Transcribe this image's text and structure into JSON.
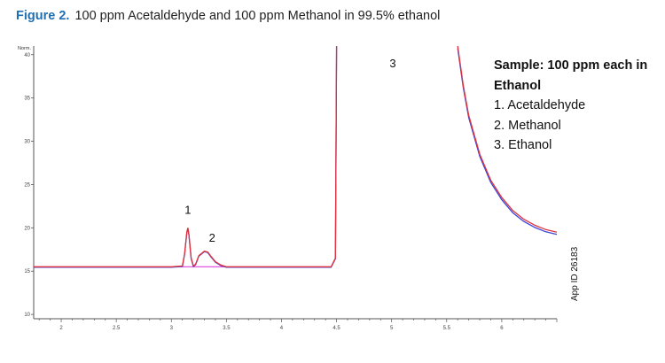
{
  "caption": {
    "figure_label": "Figure 2.",
    "text": "100 ppm Acetaldehyde and 100 ppm Methanol in 99.5% ethanol"
  },
  "legend": {
    "title_line1": "Sample: 100 ppm each  in",
    "title_line2": "Ethanol",
    "items": [
      "1. Acetaldehyde",
      "2. Methanol",
      "3. Ethanol"
    ]
  },
  "app_id": "App ID 26183",
  "colors": {
    "trace_red": "#e0323c",
    "trace_blue": "#3a44d8",
    "baseline_magenta": "#e040e0",
    "axis": "#555555"
  },
  "chart_data": {
    "type": "line",
    "title": "",
    "xlabel": "",
    "ylabel": "Norm.",
    "xlim": [
      1.75,
      6.5
    ],
    "ylim": [
      9.5,
      41
    ],
    "x_ticks": [
      2,
      2.5,
      3,
      3.5,
      4,
      4.5,
      5,
      5.5,
      6
    ],
    "x_tick_labels": [
      "2",
      "2.5",
      "3",
      "3.5",
      "4",
      "4.5",
      "5",
      "5.5",
      "6"
    ],
    "y_ticks": [
      10,
      15,
      20,
      25,
      30,
      35,
      40
    ],
    "y_tick_labels": [
      "10",
      "15",
      "20",
      "25",
      "30",
      "35",
      "40"
    ],
    "grid": false,
    "peak_labels": [
      {
        "text": "1",
        "x": 3.15,
        "y": 21.0
      },
      {
        "text": "2",
        "x": 3.37,
        "y": 17.8
      },
      {
        "text": "3",
        "x": 4.5,
        "y": 41.0
      }
    ],
    "series": [
      {
        "x": [
          1.75,
          2.0,
          2.5,
          3.0,
          3.1,
          3.12,
          3.14,
          3.15,
          3.16,
          3.18,
          3.2,
          3.22,
          3.25,
          3.3,
          3.33,
          3.36,
          3.4,
          3.45,
          3.5,
          3.6,
          3.8,
          4.0,
          4.2,
          4.45,
          4.49,
          4.5
        ],
        "y": [
          15.5,
          15.5,
          15.5,
          15.5,
          15.6,
          17.0,
          19.5,
          20.0,
          19.2,
          16.5,
          15.6,
          15.8,
          16.8,
          17.3,
          17.2,
          16.7,
          16.1,
          15.7,
          15.5,
          15.5,
          15.5,
          15.5,
          15.5,
          15.5,
          16.5,
          41.0
        ]
      },
      {
        "x": [
          5.6,
          5.65,
          5.7,
          5.8,
          5.9,
          6.0,
          6.1,
          6.2,
          6.3,
          6.4,
          6.5
        ],
        "y": [
          41.0,
          36.5,
          33.0,
          28.5,
          25.5,
          23.5,
          22.0,
          21.0,
          20.3,
          19.8,
          19.5
        ]
      }
    ]
  }
}
